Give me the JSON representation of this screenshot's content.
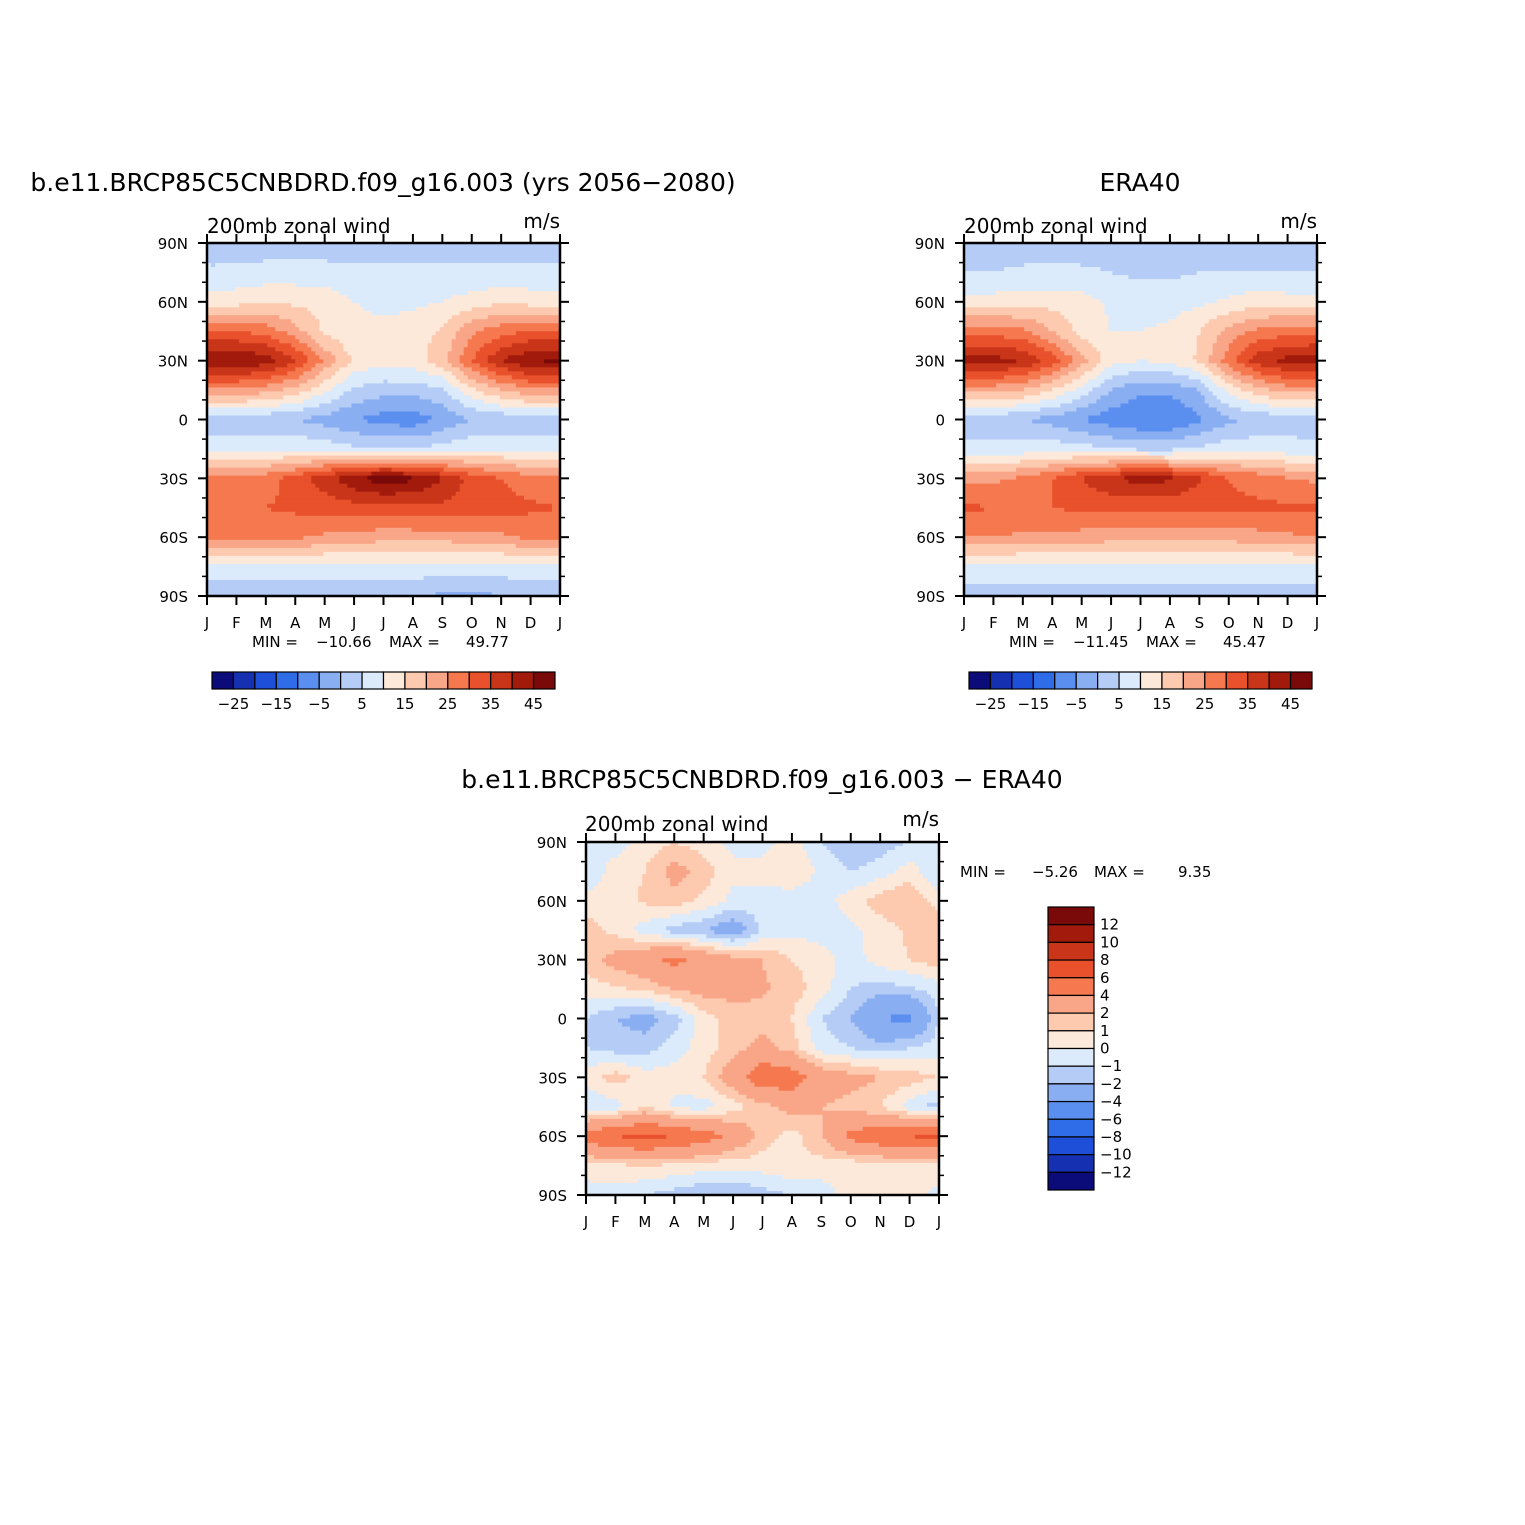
{
  "panels": [
    {
      "title": "b.e11.BRCP85C5CNBDRD.f09_g16.003 (yrs 2056-2080)",
      "subtitle_left": "200mb zonal wind",
      "subtitle_right": "m/s",
      "min_label": "MIN = ",
      "min_value": "-10.66",
      "max_label": "MAX = ",
      "max_value": "49.77"
    },
    {
      "title": "ERA40",
      "subtitle_left": "200mb zonal wind",
      "subtitle_right": "m/s",
      "min_label": "MIN = ",
      "min_value": "-11.45",
      "max_label": "MAX = ",
      "max_value": "45.47"
    },
    {
      "title": "b.e11.BRCP85C5CNBDRD.f09_g16.003 - ERA40",
      "subtitle_left": "200mb zonal wind",
      "subtitle_right": "m/s",
      "min_label": "MIN = ",
      "min_value": "-5.26",
      "max_label": "MAX = ",
      "max_value": "9.35"
    }
  ],
  "colorbar_main": {
    "colors": [
      "#0b0b7a",
      "#1530b0",
      "#1e4fd8",
      "#2f6de8",
      "#5a8ff0",
      "#8aaef2",
      "#b4ccf6",
      "#dcebfb",
      "#fde9da",
      "#fdcab0",
      "#f9a587",
      "#f5784f",
      "#e8512b",
      "#c83518",
      "#a21a0c",
      "#7a0a0a"
    ],
    "labels": [
      "-25",
      "-15",
      "-5",
      "5",
      "15",
      "25",
      "35",
      "45"
    ]
  },
  "colorbar_diff": {
    "colors": [
      "#0b0b7a",
      "#1530b0",
      "#1e4fd8",
      "#2f6de8",
      "#5a8ff0",
      "#8aaef2",
      "#b4ccf6",
      "#dcebfb",
      "#fde9da",
      "#fdcab0",
      "#f9a587",
      "#f5784f",
      "#e8512b",
      "#c83518",
      "#a21a0c",
      "#7a0a0a"
    ],
    "labels": [
      "12",
      "10",
      "8",
      "6",
      "4",
      "2",
      "1",
      "0",
      "-1",
      "-2",
      "-4",
      "-6",
      "-8",
      "-10",
      "-12"
    ]
  },
  "chart_data": [
    {
      "type": "heatmap",
      "title": "b.e11.BRCP85C5CNBDRD.f09_g16.003 (yrs 2056-2080)",
      "variable": "200mb zonal wind",
      "units": "m/s",
      "x_ticks": [
        "J",
        "F",
        "M",
        "A",
        "M",
        "J",
        "J",
        "A",
        "S",
        "O",
        "N",
        "D",
        "J"
      ],
      "y_ticks": [
        "90N",
        "60N",
        "30N",
        "0",
        "30S",
        "60S",
        "90S"
      ],
      "levels": [
        -25,
        -20,
        -15,
        -10,
        -5,
        0,
        5,
        10,
        15,
        20,
        25,
        30,
        35,
        40,
        45
      ],
      "min": -10.66,
      "max": 49.77,
      "grid": {
        "x": [
          1,
          2,
          3,
          4,
          5,
          6,
          7,
          8,
          9,
          10,
          11,
          12,
          13
        ],
        "y": [
          90,
          75,
          60,
          45,
          30,
          15,
          0,
          -15,
          -30,
          -45,
          -60,
          -75,
          -90
        ],
        "z": [
          [
            2,
            2,
            2,
            2,
            2,
            2,
            2,
            2,
            2,
            2,
            2,
            2,
            2
          ],
          [
            6,
            6,
            7,
            7,
            7,
            6,
            6,
            6,
            6,
            6,
            6,
            6,
            6
          ],
          [
            12,
            13,
            14,
            14,
            13,
            10,
            9,
            9,
            10,
            12,
            14,
            13,
            12
          ],
          [
            30,
            30,
            28,
            22,
            14,
            11,
            11,
            12,
            16,
            24,
            28,
            30,
            30
          ],
          [
            45,
            45,
            43,
            36,
            24,
            14,
            12,
            13,
            18,
            30,
            40,
            45,
            46
          ],
          [
            24,
            24,
            22,
            18,
            11,
            4,
            2,
            2,
            4,
            14,
            20,
            24,
            24
          ],
          [
            2,
            2,
            1,
            0,
            -2,
            -5,
            -7,
            -8,
            -4,
            0,
            1,
            2,
            2
          ],
          [
            7,
            7,
            8,
            9,
            8,
            6,
            5,
            5,
            7,
            9,
            9,
            8,
            7
          ],
          [
            26,
            26,
            28,
            32,
            38,
            44,
            48,
            46,
            40,
            33,
            30,
            27,
            26
          ],
          [
            30,
            30,
            30,
            31,
            32,
            33,
            33,
            34,
            34,
            33,
            32,
            31,
            30
          ],
          [
            27,
            27,
            27,
            26,
            24,
            23,
            22,
            22,
            22,
            23,
            24,
            26,
            27
          ],
          [
            8,
            8,
            8,
            8,
            8,
            8,
            8,
            8,
            8,
            8,
            8,
            8,
            8
          ],
          [
            1,
            1,
            1,
            1,
            1,
            1,
            1,
            1,
            -1,
            -2,
            0,
            1,
            1
          ]
        ]
      }
    },
    {
      "type": "heatmap",
      "title": "ERA40",
      "variable": "200mb zonal wind",
      "units": "m/s",
      "x_ticks": [
        "J",
        "F",
        "M",
        "A",
        "M",
        "J",
        "J",
        "A",
        "S",
        "O",
        "N",
        "D",
        "J"
      ],
      "y_ticks": [
        "90N",
        "60N",
        "30N",
        "0",
        "30S",
        "60S",
        "90S"
      ],
      "levels": [
        -25,
        -20,
        -15,
        -10,
        -5,
        0,
        5,
        10,
        15,
        20,
        25,
        30,
        35,
        40,
        45
      ],
      "min": -11.45,
      "max": 45.47,
      "grid": {
        "x": [
          1,
          2,
          3,
          4,
          5,
          6,
          7,
          8,
          9,
          10,
          11,
          12,
          13
        ],
        "y": [
          90,
          75,
          60,
          45,
          30,
          15,
          0,
          -15,
          -30,
          -45,
          -60,
          -75,
          -90
        ],
        "z": [
          [
            2,
            2,
            2,
            2,
            2,
            2,
            2,
            2,
            2,
            2,
            2,
            2,
            2
          ],
          [
            5,
            5,
            6,
            6,
            6,
            5,
            4,
            4,
            5,
            5,
            5,
            5,
            5
          ],
          [
            12,
            12,
            13,
            13,
            12,
            9,
            8,
            8,
            9,
            11,
            13,
            12,
            12
          ],
          [
            28,
            28,
            26,
            20,
            13,
            10,
            10,
            11,
            15,
            22,
            26,
            28,
            28
          ],
          [
            42,
            42,
            40,
            33,
            22,
            12,
            10,
            11,
            16,
            28,
            38,
            42,
            43
          ],
          [
            22,
            22,
            20,
            15,
            8,
            0,
            -4,
            -4,
            0,
            12,
            18,
            22,
            22
          ],
          [
            3,
            2,
            0,
            -2,
            -5,
            -8,
            -10,
            -10,
            -6,
            -1,
            1,
            2,
            3
          ],
          [
            6,
            6,
            7,
            8,
            7,
            5,
            4,
            4,
            6,
            8,
            8,
            7,
            6
          ],
          [
            24,
            24,
            26,
            30,
            35,
            40,
            42,
            41,
            36,
            30,
            28,
            25,
            24
          ],
          [
            31,
            30,
            30,
            30,
            31,
            31,
            31,
            31,
            31,
            31,
            31,
            31,
            31
          ],
          [
            25,
            25,
            24,
            24,
            23,
            22,
            22,
            22,
            22,
            22,
            23,
            24,
            25
          ],
          [
            8,
            8,
            8,
            8,
            8,
            8,
            8,
            8,
            8,
            8,
            8,
            8,
            8
          ],
          [
            3,
            3,
            3,
            3,
            3,
            3,
            3,
            3,
            3,
            3,
            3,
            3,
            3
          ]
        ]
      }
    },
    {
      "type": "heatmap",
      "title": "b.e11.BRCP85C5CNBDRD.f09_g16.003 - ERA40",
      "variable": "200mb zonal wind",
      "units": "m/s",
      "x_ticks": [
        "J",
        "F",
        "M",
        "A",
        "M",
        "J",
        "J",
        "A",
        "S",
        "O",
        "N",
        "D",
        "J"
      ],
      "y_ticks": [
        "90N",
        "60N",
        "30N",
        "0",
        "30S",
        "60S",
        "90S"
      ],
      "levels": [
        -12,
        -10,
        -8,
        -6,
        -4,
        -2,
        -1,
        0,
        1,
        2,
        4,
        6,
        8,
        10,
        12
      ],
      "min": -5.26,
      "max": 9.35,
      "grid": {
        "x": [
          1,
          2,
          3,
          4,
          5,
          6,
          7,
          8,
          9,
          10,
          11,
          12,
          13
        ],
        "y": [
          90,
          75,
          60,
          45,
          30,
          15,
          0,
          -15,
          -30,
          -45,
          -60,
          -75,
          -90
        ],
        "z": [
          [
            0,
            -0.5,
            0.5,
            1,
            0.5,
            -0.3,
            -0.5,
            0.5,
            -1,
            -2,
            -1.5,
            -1,
            0
          ],
          [
            -1,
            0.5,
            1,
            2.5,
            1.5,
            0.3,
            0.5,
            1,
            -0.3,
            -1,
            -0.5,
            0.5,
            -1
          ],
          [
            0.5,
            0.5,
            1.2,
            1.5,
            0.8,
            -0.3,
            -0.5,
            -0.7,
            -0.5,
            0.5,
            1.5,
            2,
            0.5
          ],
          [
            1.5,
            0.7,
            -0.5,
            -1.5,
            -2,
            -3,
            -0.8,
            -0.3,
            -0.5,
            -0.3,
            0.5,
            1.2,
            2
          ],
          [
            1.5,
            2.5,
            3.5,
            4.5,
            3.5,
            2.5,
            2,
            1,
            0.5,
            -0.5,
            0.5,
            1,
            1.5
          ],
          [
            0.5,
            0.8,
            1.2,
            2,
            2.5,
            2.5,
            2.2,
            1.5,
            0.5,
            -1,
            -1.5,
            -1.2,
            -0.5
          ],
          [
            -1,
            -2,
            -2.5,
            -1.5,
            0.5,
            1.5,
            1.5,
            1,
            -1,
            -2,
            -4,
            -4.5,
            -1
          ],
          [
            -1,
            -1.5,
            -1.5,
            -0.5,
            0.5,
            1.5,
            2.5,
            1.5,
            -0.5,
            -1,
            -1.5,
            -1,
            -0.5
          ],
          [
            0.5,
            1.5,
            0.5,
            0.5,
            1,
            3,
            5.5,
            5,
            3,
            2.5,
            2,
            1.5,
            1
          ],
          [
            -1,
            -0.5,
            1,
            -0.3,
            -0.5,
            0.5,
            1.5,
            2.5,
            2,
            1.5,
            1,
            -0.5,
            -1.5
          ],
          [
            5,
            6,
            6.5,
            6,
            5,
            3.5,
            1.5,
            0.5,
            2,
            4.5,
            5.5,
            6,
            6.5
          ],
          [
            0.5,
            0.8,
            1,
            0.8,
            0.5,
            0.3,
            0.5,
            0.8,
            0.5,
            0.3,
            0.5,
            0.8,
            0.5
          ],
          [
            -0.5,
            -0.5,
            -1,
            -1.5,
            -2,
            -2,
            -1.5,
            -1,
            -0.5,
            0.5,
            0.5,
            0.3,
            -0.3
          ]
        ]
      }
    }
  ]
}
